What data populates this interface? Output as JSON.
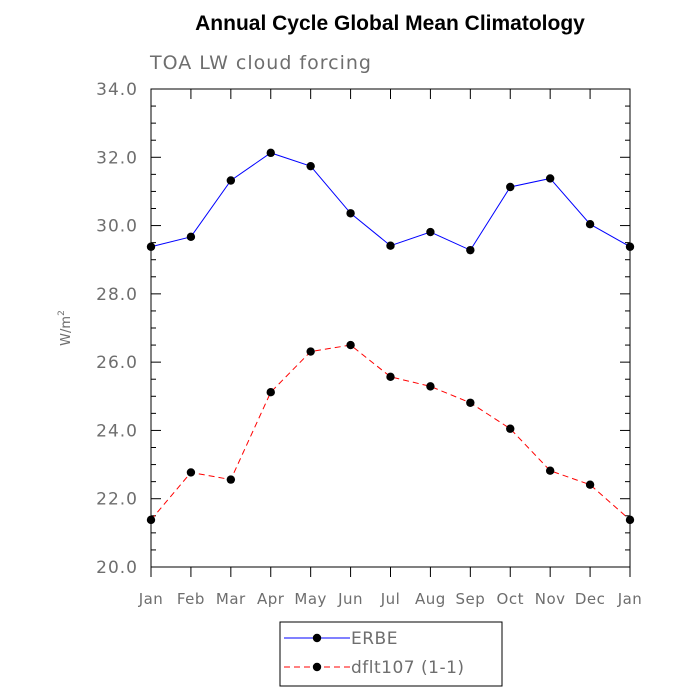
{
  "chart_data": {
    "type": "line",
    "title": "Annual Cycle Global Mean Climatology",
    "subtitle": "TOA LW cloud forcing",
    "xlabel": "",
    "ylabel": "W/m",
    "ylabel_superscript": "2",
    "categories": [
      "Jan",
      "Feb",
      "Mar",
      "Apr",
      "May",
      "Jun",
      "Jul",
      "Aug",
      "Sep",
      "Oct",
      "Nov",
      "Dec",
      "Jan"
    ],
    "ylim": [
      20.0,
      34.0
    ],
    "yticks": [
      "20.0",
      "22.0",
      "24.0",
      "26.0",
      "28.0",
      "30.0",
      "32.0",
      "34.0"
    ],
    "grid": false,
    "legend_position": "bottom-center",
    "series": [
      {
        "name": "ERBE",
        "color": "#0000ff",
        "line_style": "solid",
        "marker": "filled-circle",
        "values": [
          29.38,
          29.67,
          31.32,
          32.13,
          31.74,
          30.36,
          29.41,
          29.81,
          29.28,
          31.13,
          31.38,
          30.04,
          29.38
        ]
      },
      {
        "name": "dflt107 (1-1)",
        "color": "#ff0000",
        "line_style": "dashed",
        "marker": "filled-circle",
        "values": [
          21.38,
          22.77,
          22.56,
          25.12,
          26.31,
          26.5,
          25.57,
          25.29,
          24.81,
          24.05,
          22.82,
          22.41,
          21.38
        ]
      }
    ]
  }
}
